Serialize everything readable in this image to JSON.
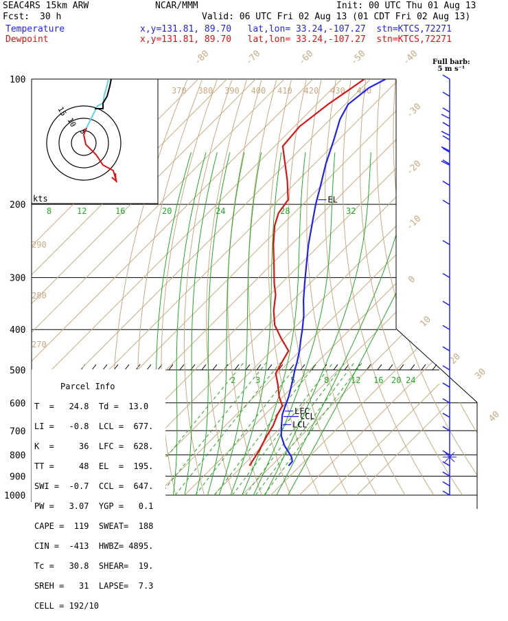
{
  "header": {
    "model": "SEAC4RS 15km ARW",
    "center": "NCAR/MMM",
    "init": "Init: 00 UTC Thu 01 Aug 13",
    "fcst_label": "Fcst:",
    "fcst_value": "30 h",
    "valid": "Valid: 06 UTC Fri 02 Aug 13 (01 CDT Fri 02 Aug 13)",
    "temperature_label": "Temperature",
    "dewpoint_label": "Dewpoint",
    "loc_line_temp": "x,y=131.81, 89.70   lat,lon= 33.24,-107.27  stn=KTCS,72271",
    "loc_line_dew": "x,y=131.81, 89.70   lat,lon= 33.24,-107.27  stn=KTCS,72271"
  },
  "colors": {
    "temperature": "#1e1eff",
    "dewpoint": "#e01010",
    "isotherm": "#c8aa82",
    "dry_adiabat": "#c8aa82",
    "moist_adiabat": "#22aa22",
    "mixing_ratio": "#22aa22",
    "isobar": "#000000",
    "hodo_track": "#5ad2e6"
  },
  "full_barb_label": [
    "Full barb:",
    "5 m s⁻¹"
  ],
  "hodograph": {
    "unit_label": "kts",
    "ring_labels": [
      "5",
      "10",
      "15"
    ]
  },
  "parcel_info": {
    "title": "Parcel Info",
    "rows": [
      "T  =   24.8  Td =  13.0",
      "LI =   -0.8  LCL =  677.",
      "K  =     36  LFC =  628.",
      "TT =     48  EL  =  195.",
      "SWI =  -0.7  CCL =  647.",
      "PW =   3.07  YGP =   0.1",
      "CAPE =  119  SWEAT=  188",
      "CIN =  -413  HWBZ= 4895.",
      "Tc =   30.8  SHEAR=  19.",
      "SREH =   31  LAPSE=  7.3",
      "CELL = 192/10"
    ]
  },
  "level_labels": {
    "el": "EL",
    "lfc": "LFC",
    "ccl": "CCL",
    "lcl": "LCL"
  },
  "chart_data": {
    "type": "line",
    "subtype": "skew-T log-P",
    "y_axis": "pressure (hPa)",
    "pressure_ticks": [
      100,
      200,
      300,
      400,
      500,
      600,
      700,
      800,
      900,
      1000
    ],
    "isotherm_labels_upper": [
      -80,
      -70,
      -60,
      -50,
      -40,
      -30,
      -20,
      -10,
      0,
      10,
      20,
      30,
      40
    ],
    "potential_temp_labels": [
      370,
      380,
      390,
      400,
      410,
      420,
      430,
      440
    ],
    "theta_lower_labels": [
      290,
      280,
      270
    ],
    "mixing_ratio_labels_upper": [
      8,
      12,
      16,
      20,
      24,
      28,
      32
    ],
    "mixing_ratio_labels_lower": [
      2,
      3,
      5,
      8,
      12,
      16,
      20,
      24
    ],
    "series": [
      {
        "name": "Temperature",
        "pressure": [
          850,
          830,
          810,
          790,
          760,
          720,
          680,
          640,
          610,
          580,
          550,
          520,
          500,
          480,
          450,
          420,
          400,
          370,
          340,
          310,
          280,
          250,
          220,
          200,
          180,
          160,
          140,
          125,
          115,
          105,
          100
        ],
        "temp_c": [
          26.0,
          25.8,
          24.0,
          21.5,
          17.5,
          13.0,
          9.5,
          6.0,
          4.0,
          2.0,
          -0.5,
          -3.2,
          -5.2,
          -7.0,
          -10.2,
          -14.0,
          -16.6,
          -21.0,
          -26.4,
          -31.8,
          -37.6,
          -44.0,
          -50.6,
          -55.5,
          -60.4,
          -66.0,
          -71.6,
          -76.6,
          -79.0,
          -77.5,
          -74.7
        ]
      },
      {
        "name": "Dewpoint",
        "pressure": [
          850,
          830,
          800,
          760,
          720,
          680,
          640,
          610,
          580,
          540,
          510,
          480,
          450,
          420,
          390,
          360,
          330,
          310,
          280,
          250,
          225,
          210,
          195,
          175,
          160,
          145,
          130,
          115,
          106,
          100
        ],
        "temp_c": [
          12.4,
          11.8,
          11.0,
          9.6,
          8.0,
          6.6,
          4.3,
          3.0,
          -1.3,
          -6.3,
          -10.6,
          -12.3,
          -14.0,
          -20.9,
          -27.8,
          -33.2,
          -38.0,
          -42.4,
          -48.9,
          -56.2,
          -62.4,
          -65.4,
          -66.7,
          -73.8,
          -80.2,
          -87.2,
          -88.2,
          -86.0,
          -83.7,
          -82.1
        ]
      }
    ],
    "wind_barbs_pressure": [
      1000,
      950,
      900,
      850,
      800,
      700,
      650,
      600,
      550,
      500,
      450,
      400,
      350,
      300,
      250,
      200,
      180,
      160,
      150,
      140,
      130,
      120,
      110,
      100
    ]
  }
}
